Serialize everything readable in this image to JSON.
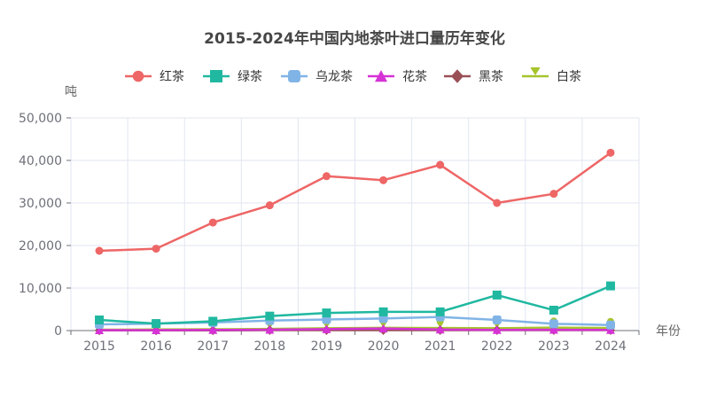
{
  "chart_data": {
    "type": "line",
    "title": "2015-2024年中国内地茶叶进口量历年变化",
    "xlabel": "年份",
    "ylabel": "吨",
    "ylim": [
      0,
      50000
    ],
    "yticks": [
      0,
      10000,
      20000,
      30000,
      40000,
      50000
    ],
    "ytick_labels": [
      "0",
      "10,000",
      "20,000",
      "30,000",
      "40,000",
      "50,000"
    ],
    "grid": true,
    "legend_position": "top",
    "categories": [
      "2015",
      "2016",
      "2017",
      "2018",
      "2019",
      "2020",
      "2021",
      "2022",
      "2023",
      "2024"
    ],
    "series": [
      {
        "name": "红茶",
        "color": "#ee6666",
        "symbol": "circle",
        "values": [
          18750,
          19250,
          25400,
          29450,
          36300,
          35350,
          38950,
          30000,
          32150,
          41800
        ]
      },
      {
        "name": "绿茶",
        "color": "#20b8a0",
        "symbol": "square",
        "values": [
          2500,
          1650,
          2200,
          3400,
          4150,
          4400,
          4400,
          8350,
          4800,
          10500
        ]
      },
      {
        "name": "乌龙茶",
        "color": "#80b4e6",
        "symbol": "roundRect",
        "values": [
          1450,
          1650,
          1900,
          2350,
          2600,
          2850,
          3200,
          2500,
          1600,
          1300
        ]
      },
      {
        "name": "花茶",
        "color": "#d632d6",
        "symbol": "triangle",
        "values": [
          100,
          100,
          150,
          200,
          350,
          500,
          250,
          150,
          200,
          150
        ]
      },
      {
        "name": "黑茶",
        "color": "#9a4f57",
        "symbol": "diamond",
        "values": [
          50,
          50,
          50,
          100,
          100,
          100,
          100,
          100,
          100,
          100
        ]
      },
      {
        "name": "白茶",
        "color": "#a6c42c",
        "symbol": "pin",
        "values": [
          200,
          250,
          300,
          400,
          550,
          650,
          600,
          550,
          700,
          600
        ]
      }
    ]
  },
  "chart_title": "2015-2024年中国内地茶叶进口量历年变化",
  "legend": {
    "items": [
      {
        "label": "红茶"
      },
      {
        "label": "绿茶"
      },
      {
        "label": "乌龙茶"
      },
      {
        "label": "花茶"
      },
      {
        "label": "黑茶"
      },
      {
        "label": "白茶"
      }
    ]
  },
  "axes": {
    "y_name": "吨",
    "x_name": "年份"
  }
}
